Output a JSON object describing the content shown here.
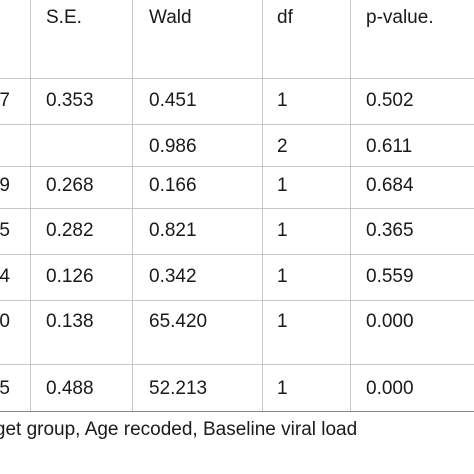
{
  "table": {
    "headers": [
      "S.E.",
      "Wald",
      "df",
      "p-value."
    ],
    "rows": [
      {
        "b": "7",
        "se": "0.353",
        "wald": "0.451",
        "df": "1",
        "p": "0.502"
      },
      {
        "b": "",
        "se": "",
        "wald": "0.986",
        "df": "2",
        "p": "0.611"
      },
      {
        "b": "9",
        "se": "0.268",
        "wald": "0.166",
        "df": "1",
        "p": "0.684"
      },
      {
        "b": "5",
        "se": "0.282",
        "wald": "0.821",
        "df": "1",
        "p": "0.365"
      },
      {
        "b": "4",
        "se": "0.126",
        "wald": "0.342",
        "df": "1",
        "p": "0.559"
      },
      {
        "b": "0",
        "se": "0.138",
        "wald": "65.420",
        "df": "1",
        "p": "0.000"
      },
      {
        "b": "5",
        "se": "0.488",
        "wald": "52.213",
        "df": "1",
        "p": "0.000"
      }
    ]
  },
  "footnote": "arget group, Age recoded, Baseline viral load"
}
